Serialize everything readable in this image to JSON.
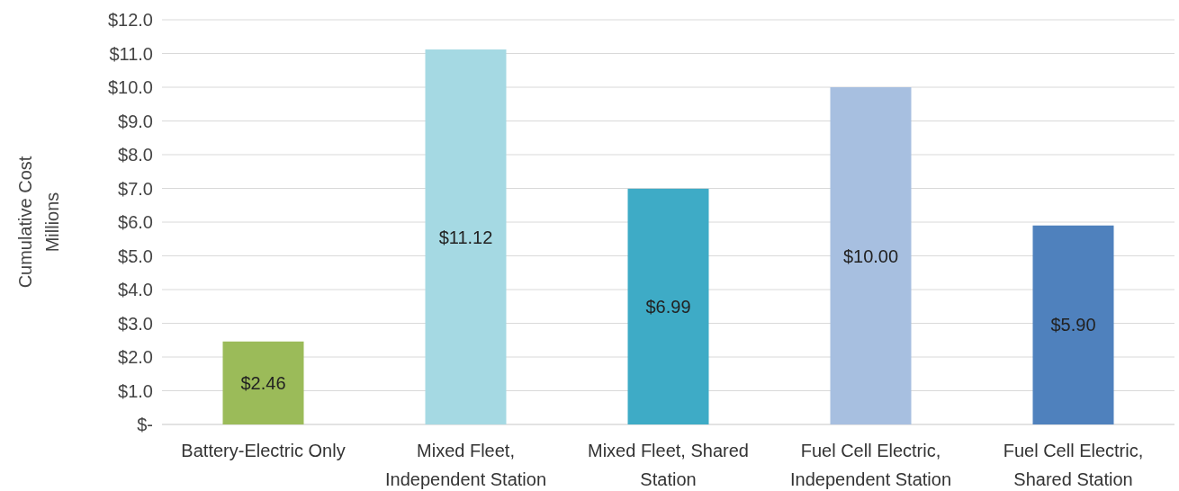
{
  "chart_data": {
    "type": "bar",
    "ylabel": "Cumulative Cost\nMillions",
    "categories": [
      "Battery-Electric Only",
      "Mixed Fleet, Independent Station",
      "Mixed Fleet, Shared Station",
      "Fuel Cell Electric, Independent Station",
      "Fuel Cell Electric, Shared Station"
    ],
    "values": [
      2.46,
      11.12,
      6.99,
      10.0,
      5.9
    ],
    "colors": [
      "#9bbb59",
      "#a5d9e3",
      "#3eabc6",
      "#a7bfe0",
      "#4f81bd"
    ],
    "value_labels": [
      "$2.46",
      "$11.12",
      "$6.99",
      "$10.00",
      "$5.90"
    ],
    "ylim": [
      0,
      12
    ],
    "yticks": [
      {
        "value": 0,
        "label": "$-"
      },
      {
        "value": 1,
        "label": "$1.0"
      },
      {
        "value": 2,
        "label": "$2.0"
      },
      {
        "value": 3,
        "label": "$3.0"
      },
      {
        "value": 4,
        "label": "$4.0"
      },
      {
        "value": 5,
        "label": "$5.0"
      },
      {
        "value": 6,
        "label": "$6.0"
      },
      {
        "value": 7,
        "label": "$7.0"
      },
      {
        "value": 8,
        "label": "$8.0"
      },
      {
        "value": 9,
        "label": "$9.0"
      },
      {
        "value": 10,
        "label": "$10.0"
      },
      {
        "value": 11,
        "label": "$11.0"
      },
      {
        "value": 12,
        "label": "$12.0"
      }
    ],
    "grid": "y"
  }
}
